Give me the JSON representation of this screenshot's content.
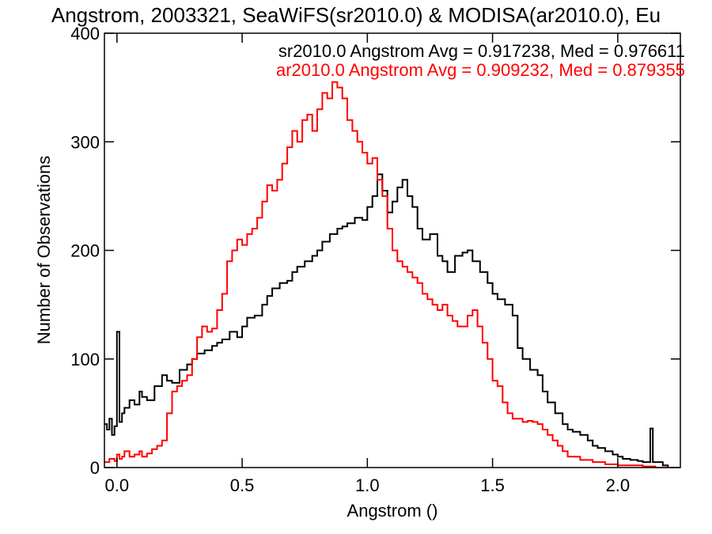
{
  "chart_data": {
    "type": "line",
    "step": true,
    "title": "Angstrom, 2003321, SeaWiFS(sr2010.0) & MODISA(ar2010.0), Eu",
    "xlabel": "Angstrom ()",
    "ylabel": "Number of Observations",
    "xlim": [
      -0.05,
      2.25
    ],
    "ylim": [
      0,
      400
    ],
    "xticks": [
      0.0,
      0.5,
      1.0,
      1.5,
      2.0
    ],
    "xtick_labels": [
      "0.0",
      "0.5",
      "1.0",
      "1.5",
      "2.0"
    ],
    "yticks": [
      0,
      100,
      200,
      300,
      400
    ],
    "ytick_labels": [
      "0",
      "100",
      "200",
      "300",
      "400"
    ],
    "grid": false,
    "legend": {
      "placement": "top-right"
    },
    "annotations": [
      {
        "text": "sr2010.0 Angstrom Avg = 0.917238, Med = 0.976611",
        "color": "#000000"
      },
      {
        "text": "ar2010.0 Angstrom Avg = 0.909232, Med = 0.879355",
        "color": "#ff0000"
      }
    ],
    "series": [
      {
        "name": "sr2010.0",
        "color": "#000000",
        "x": [
          -0.05,
          -0.04,
          -0.03,
          -0.02,
          -0.01,
          0.0,
          0.01,
          0.02,
          0.03,
          0.05,
          0.07,
          0.09,
          0.1,
          0.12,
          0.15,
          0.18,
          0.2,
          0.22,
          0.25,
          0.28,
          0.3,
          0.32,
          0.35,
          0.38,
          0.4,
          0.42,
          0.45,
          0.48,
          0.5,
          0.52,
          0.55,
          0.58,
          0.6,
          0.62,
          0.65,
          0.68,
          0.7,
          0.72,
          0.75,
          0.78,
          0.8,
          0.82,
          0.85,
          0.88,
          0.9,
          0.92,
          0.95,
          0.98,
          1.0,
          1.02,
          1.04,
          1.06,
          1.08,
          1.1,
          1.12,
          1.14,
          1.16,
          1.18,
          1.2,
          1.22,
          1.25,
          1.28,
          1.3,
          1.32,
          1.35,
          1.38,
          1.4,
          1.42,
          1.45,
          1.48,
          1.5,
          1.52,
          1.55,
          1.58,
          1.6,
          1.62,
          1.65,
          1.68,
          1.7,
          1.72,
          1.75,
          1.78,
          1.8,
          1.82,
          1.85,
          1.88,
          1.9,
          1.92,
          1.95,
          1.98,
          2.0,
          2.02,
          2.05,
          2.08,
          2.1,
          2.12,
          2.13,
          2.14,
          2.15,
          2.18,
          2.2,
          2.25
        ],
        "y": [
          40,
          35,
          45,
          30,
          38,
          125,
          42,
          50,
          55,
          62,
          58,
          70,
          65,
          62,
          75,
          85,
          80,
          78,
          90,
          95,
          100,
          105,
          108,
          112,
          115,
          118,
          125,
          120,
          130,
          138,
          140,
          150,
          158,
          165,
          170,
          172,
          180,
          185,
          190,
          195,
          200,
          208,
          215,
          220,
          222,
          225,
          230,
          228,
          240,
          250,
          270,
          255,
          235,
          245,
          258,
          265,
          250,
          240,
          220,
          210,
          215,
          195,
          190,
          180,
          195,
          198,
          200,
          190,
          180,
          170,
          160,
          155,
          150,
          140,
          110,
          100,
          90,
          85,
          70,
          60,
          50,
          40,
          35,
          33,
          30,
          25,
          20,
          18,
          15,
          12,
          10,
          8,
          7,
          6,
          5,
          5,
          36,
          5,
          5,
          2,
          0,
          0
        ]
      },
      {
        "name": "ar2010.0",
        "color": "#ff0000",
        "x": [
          -0.05,
          -0.03,
          -0.01,
          0.0,
          0.01,
          0.02,
          0.03,
          0.05,
          0.07,
          0.09,
          0.1,
          0.12,
          0.14,
          0.16,
          0.18,
          0.2,
          0.22,
          0.24,
          0.26,
          0.28,
          0.3,
          0.32,
          0.34,
          0.36,
          0.38,
          0.4,
          0.42,
          0.44,
          0.46,
          0.48,
          0.5,
          0.52,
          0.54,
          0.56,
          0.58,
          0.6,
          0.62,
          0.64,
          0.66,
          0.68,
          0.7,
          0.72,
          0.74,
          0.76,
          0.78,
          0.8,
          0.82,
          0.84,
          0.86,
          0.88,
          0.9,
          0.92,
          0.94,
          0.96,
          0.98,
          1.0,
          1.02,
          1.04,
          1.06,
          1.08,
          1.1,
          1.12,
          1.14,
          1.16,
          1.18,
          1.2,
          1.22,
          1.24,
          1.26,
          1.28,
          1.3,
          1.32,
          1.34,
          1.36,
          1.38,
          1.4,
          1.42,
          1.44,
          1.46,
          1.48,
          1.5,
          1.52,
          1.54,
          1.56,
          1.58,
          1.6,
          1.62,
          1.64,
          1.66,
          1.68,
          1.7,
          1.72,
          1.74,
          1.76,
          1.78,
          1.8,
          1.85,
          1.9,
          1.95,
          2.0,
          2.05,
          2.1,
          2.15,
          2.2,
          2.25
        ],
        "y": [
          5,
          8,
          6,
          12,
          8,
          10,
          15,
          10,
          12,
          15,
          10,
          13,
          17,
          20,
          25,
          50,
          70,
          75,
          80,
          85,
          100,
          120,
          130,
          125,
          128,
          145,
          160,
          190,
          200,
          210,
          205,
          215,
          220,
          230,
          245,
          260,
          255,
          265,
          280,
          295,
          310,
          300,
          320,
          325,
          310,
          330,
          345,
          340,
          355,
          350,
          340,
          320,
          310,
          300,
          290,
          280,
          285,
          265,
          250,
          220,
          200,
          190,
          185,
          180,
          175,
          170,
          160,
          155,
          150,
          145,
          150,
          140,
          135,
          130,
          130,
          140,
          145,
          130,
          115,
          100,
          80,
          75,
          60,
          50,
          45,
          45,
          42,
          43,
          42,
          40,
          35,
          30,
          25,
          20,
          15,
          10,
          7,
          5,
          3,
          2,
          2,
          1,
          0,
          0,
          0
        ]
      }
    ]
  }
}
